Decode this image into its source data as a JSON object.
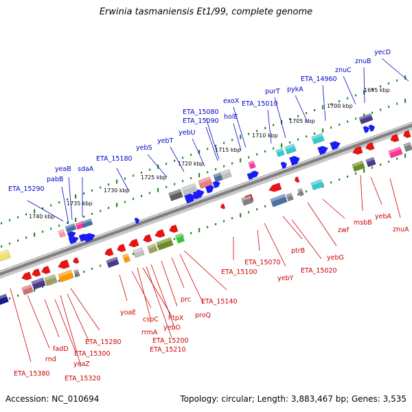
{
  "title": "Erwinia tasmaniensis Et1/99, complete genome",
  "footer": {
    "accession": "Accession: NC_010694",
    "summary": "Topology: circular; Length: 3,883,467 bp; Genes: 3,535"
  },
  "colors": {
    "forward_label": "#0000cc",
    "reverse_label": "#cc0000",
    "backbone": "#808080",
    "tick_dots": "#228b22"
  },
  "scale_labels": [
    "1740 kbp",
    "1735 kbp",
    "1730 kbp",
    "1725 kbp",
    "1720 kbp",
    "1715 kbp",
    "1710 kbp",
    "1705 kbp",
    "1700 kbp",
    "1695 kbp"
  ],
  "forward_genes": [
    "ETA_15290",
    "pabB",
    "yeaB",
    "sdaA",
    "ETA_15180",
    "yebS",
    "yebT",
    "yebU",
    "ETA_15090",
    "ETA_15080",
    "holE",
    "exoX",
    "ETA_15010",
    "purT",
    "pykA",
    "ETA_14960",
    "znuC",
    "znuB",
    "yecD"
  ],
  "reverse_genes": [
    "ETA_15380",
    "rnd",
    "fadD",
    "yeaZ",
    "ETA_15320",
    "ETA_15300",
    "ETA_15280",
    "yoaE",
    "cspC",
    "rrmA",
    "yebO",
    "ETA_15210",
    "ETA_15200",
    "htpX",
    "prc",
    "proQ",
    "ETA_15140",
    "ETA_15100",
    "ETA_15070",
    "yebY",
    "ptrB",
    "ETA_15020",
    "yebG",
    "zwf",
    "msbB",
    "yebA",
    "znuA"
  ]
}
